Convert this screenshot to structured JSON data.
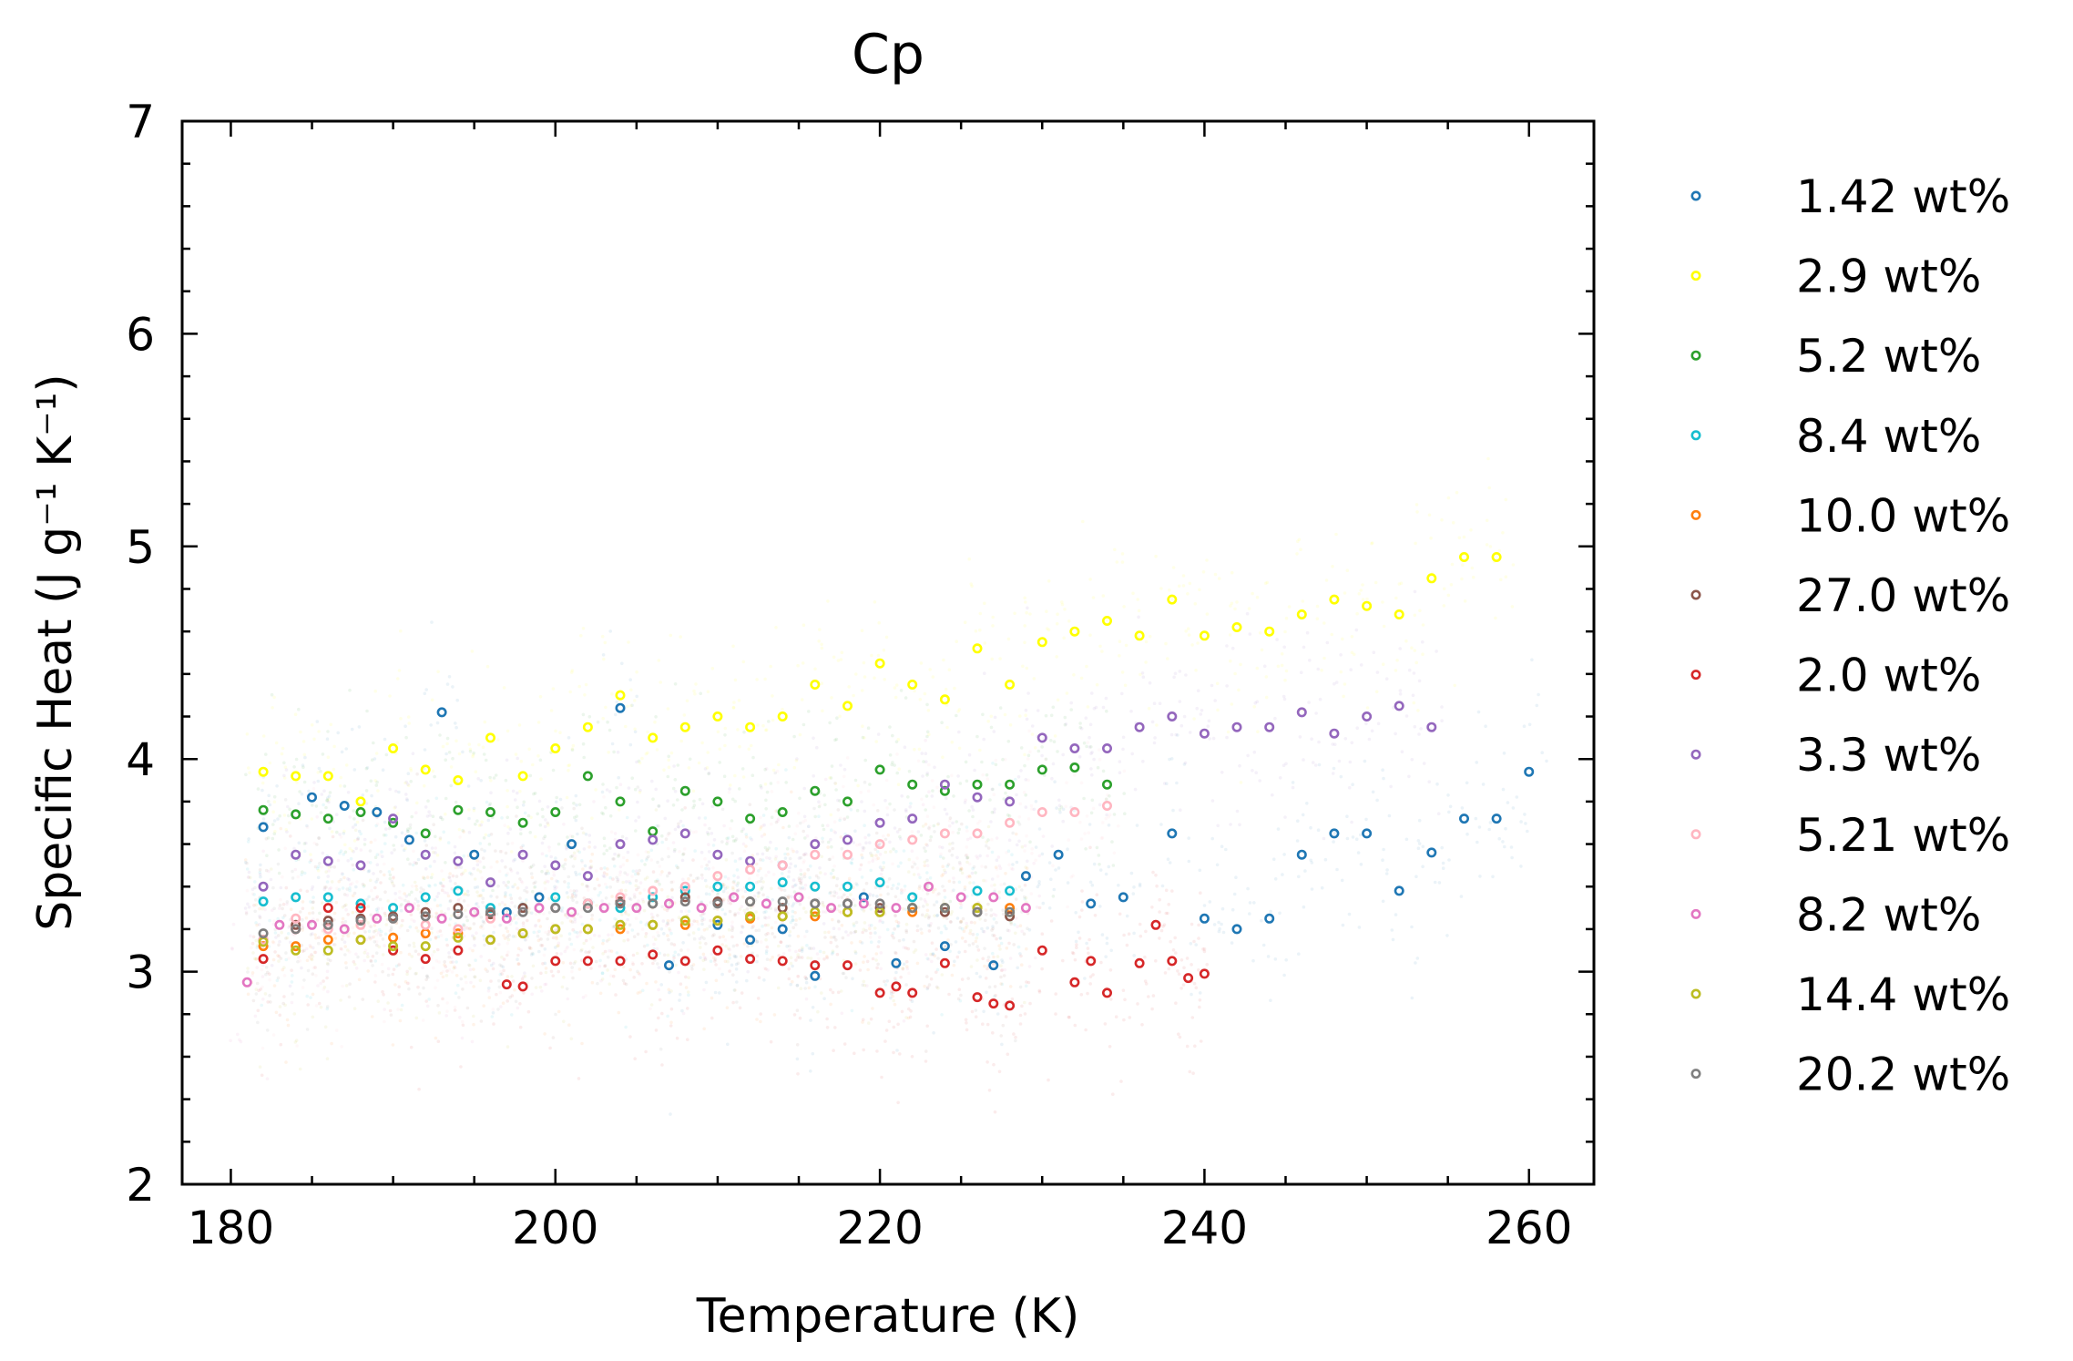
{
  "chart_data": {
    "type": "scatter",
    "title": "Cp",
    "xlabel": "Temperature (K)",
    "ylabel": "Specific Heat (J g⁻¹ K⁻¹)",
    "xlim": [
      177,
      264
    ],
    "ylim": [
      2,
      7
    ],
    "xticks": [
      180,
      200,
      220,
      240,
      260
    ],
    "yticks": [
      2,
      3,
      4,
      5,
      6,
      7
    ],
    "grid": false,
    "legend_position": "outside-right",
    "marker": "hollow-circle",
    "series": [
      {
        "name": "1.42 wt%",
        "color": "#1f77b4",
        "x": [
          182,
          185,
          187,
          189,
          191,
          193,
          195,
          197,
          199,
          201,
          204,
          207,
          210,
          212,
          214,
          216,
          219,
          221,
          224,
          227,
          229,
          231,
          233,
          235,
          238,
          240,
          242,
          244,
          246,
          248,
          250,
          252,
          254,
          256,
          258,
          260
        ],
        "y": [
          3.68,
          3.82,
          3.78,
          3.75,
          3.62,
          4.22,
          3.55,
          3.28,
          3.35,
          3.6,
          4.24,
          3.03,
          3.22,
          3.15,
          3.2,
          2.98,
          3.35,
          3.04,
          3.12,
          3.03,
          3.45,
          3.55,
          3.32,
          3.35,
          3.65,
          3.25,
          3.2,
          3.25,
          3.55,
          3.65,
          3.65,
          3.38,
          3.56,
          3.72,
          3.72,
          3.94
        ]
      },
      {
        "name": "2.9 wt%",
        "color": "#ffff00",
        "x": [
          182,
          184,
          186,
          188,
          190,
          192,
          194,
          196,
          198,
          200,
          202,
          204,
          206,
          208,
          210,
          212,
          214,
          216,
          218,
          220,
          222,
          224,
          226,
          228,
          230,
          232,
          234,
          236,
          238,
          240,
          242,
          244,
          246,
          248,
          250,
          252,
          254,
          256,
          258
        ],
        "y": [
          3.94,
          3.92,
          3.92,
          3.8,
          4.05,
          3.95,
          3.9,
          4.1,
          3.92,
          4.05,
          4.15,
          4.3,
          4.1,
          4.15,
          4.2,
          4.15,
          4.2,
          4.35,
          4.25,
          4.45,
          4.35,
          4.28,
          4.52,
          4.35,
          4.55,
          4.6,
          4.65,
          4.58,
          4.75,
          4.58,
          4.62,
          4.6,
          4.68,
          4.75,
          4.72,
          4.68,
          4.85,
          4.95,
          4.95
        ]
      },
      {
        "name": "5.2 wt%",
        "color": "#2ca02c",
        "x": [
          182,
          184,
          186,
          188,
          190,
          192,
          194,
          196,
          198,
          200,
          202,
          204,
          206,
          208,
          210,
          212,
          214,
          216,
          218,
          220,
          222,
          224,
          226,
          228,
          230,
          232,
          234
        ],
        "y": [
          3.76,
          3.74,
          3.72,
          3.75,
          3.7,
          3.65,
          3.76,
          3.75,
          3.7,
          3.75,
          3.92,
          3.8,
          3.66,
          3.85,
          3.8,
          3.72,
          3.75,
          3.85,
          3.8,
          3.95,
          3.88,
          3.85,
          3.88,
          3.88,
          3.95,
          3.96,
          3.88
        ]
      },
      {
        "name": "8.4 wt%",
        "color": "#17becf",
        "x": [
          182,
          184,
          186,
          188,
          190,
          192,
          194,
          196,
          198,
          200,
          202,
          204,
          206,
          208,
          210,
          212,
          214,
          216,
          218,
          220,
          222,
          224,
          226,
          228
        ],
        "y": [
          3.33,
          3.35,
          3.35,
          3.32,
          3.3,
          3.35,
          3.38,
          3.3,
          3.3,
          3.35,
          3.32,
          3.3,
          3.35,
          3.38,
          3.4,
          3.4,
          3.42,
          3.4,
          3.4,
          3.42,
          3.35,
          3.3,
          3.38,
          3.38
        ]
      },
      {
        "name": "10.0 wt%",
        "color": "#ff7f0e",
        "x": [
          182,
          184,
          186,
          188,
          190,
          192,
          194,
          196,
          198,
          200,
          202,
          204,
          206,
          208,
          210,
          212,
          214,
          216,
          218,
          220,
          222,
          224,
          226,
          228
        ],
        "y": [
          3.12,
          3.12,
          3.15,
          3.15,
          3.16,
          3.18,
          3.18,
          3.15,
          3.18,
          3.2,
          3.2,
          3.2,
          3.22,
          3.22,
          3.24,
          3.25,
          3.26,
          3.26,
          3.28,
          3.28,
          3.28,
          3.3,
          3.3,
          3.3
        ]
      },
      {
        "name": "27.0 wt%",
        "color": "#8c564b",
        "x": [
          182,
          184,
          186,
          188,
          190,
          192,
          194,
          196,
          198,
          200,
          202,
          204,
          206,
          208,
          210,
          212,
          214,
          216,
          218,
          220,
          222,
          224,
          226,
          228
        ],
        "y": [
          3.15,
          3.22,
          3.24,
          3.25,
          3.26,
          3.28,
          3.3,
          3.27,
          3.3,
          3.3,
          3.32,
          3.33,
          3.32,
          3.35,
          3.33,
          3.33,
          3.3,
          3.32,
          3.32,
          3.3,
          3.3,
          3.28,
          3.28,
          3.26
        ]
      },
      {
        "name": "2.0 wt%",
        "color": "#d62728",
        "x": [
          182,
          184,
          186,
          188,
          190,
          192,
          194,
          197,
          198,
          200,
          202,
          204,
          206,
          208,
          210,
          212,
          214,
          216,
          218,
          220,
          221,
          222,
          224,
          226,
          227,
          228,
          230,
          232,
          233,
          234,
          236,
          237,
          238,
          239,
          240
        ],
        "y": [
          3.06,
          3.2,
          3.3,
          3.3,
          3.1,
          3.06,
          3.1,
          2.94,
          2.93,
          3.05,
          3.05,
          3.05,
          3.08,
          3.05,
          3.1,
          3.06,
          3.05,
          3.03,
          3.03,
          2.9,
          2.93,
          2.9,
          3.04,
          2.88,
          2.85,
          2.84,
          3.1,
          2.95,
          3.05,
          2.9,
          3.04,
          3.22,
          3.05,
          2.97,
          2.99
        ]
      },
      {
        "name": "3.3 wt%",
        "color": "#9467bd",
        "x": [
          182,
          184,
          186,
          188,
          190,
          192,
          194,
          196,
          198,
          200,
          202,
          204,
          206,
          208,
          210,
          212,
          214,
          216,
          218,
          220,
          222,
          224,
          226,
          228,
          230,
          232,
          234,
          236,
          238,
          240,
          242,
          244,
          246,
          248,
          250,
          252,
          254
        ],
        "y": [
          3.4,
          3.55,
          3.52,
          3.5,
          3.72,
          3.55,
          3.52,
          3.42,
          3.55,
          3.5,
          3.45,
          3.6,
          3.62,
          3.65,
          3.55,
          3.52,
          3.5,
          3.6,
          3.62,
          3.7,
          3.72,
          3.88,
          3.82,
          3.8,
          4.1,
          4.05,
          4.05,
          4.15,
          4.2,
          4.12,
          4.15,
          4.15,
          4.22,
          4.12,
          4.2,
          4.25,
          4.15
        ]
      },
      {
        "name": "5.21 wt%",
        "color": "#ffb6c1",
        "x": [
          182,
          184,
          186,
          188,
          190,
          192,
          194,
          196,
          198,
          200,
          202,
          204,
          206,
          208,
          210,
          212,
          214,
          216,
          218,
          220,
          222,
          224,
          226,
          228,
          230,
          232,
          234
        ],
        "y": [
          3.15,
          3.25,
          3.2,
          3.22,
          3.25,
          3.22,
          3.2,
          3.25,
          3.28,
          3.3,
          3.32,
          3.35,
          3.38,
          3.4,
          3.45,
          3.48,
          3.5,
          3.55,
          3.55,
          3.6,
          3.62,
          3.65,
          3.65,
          3.7,
          3.75,
          3.75,
          3.78
        ]
      },
      {
        "name": "8.2 wt%",
        "color": "#e377c2",
        "x": [
          181,
          183,
          185,
          187,
          189,
          191,
          193,
          195,
          197,
          199,
          201,
          203,
          205,
          207,
          209,
          211,
          213,
          215,
          217,
          219,
          221,
          223,
          225,
          227,
          229
        ],
        "y": [
          2.95,
          3.22,
          3.22,
          3.2,
          3.25,
          3.3,
          3.25,
          3.28,
          3.25,
          3.3,
          3.28,
          3.3,
          3.3,
          3.32,
          3.3,
          3.35,
          3.32,
          3.35,
          3.3,
          3.32,
          3.3,
          3.4,
          3.35,
          3.35,
          3.3
        ]
      },
      {
        "name": "14.4 wt%",
        "color": "#bcbd22",
        "x": [
          182,
          184,
          186,
          188,
          190,
          192,
          194,
          196,
          198,
          200,
          202,
          204,
          206,
          208,
          210,
          212,
          214,
          216,
          218,
          220,
          222,
          224,
          226,
          228
        ],
        "y": [
          3.14,
          3.1,
          3.1,
          3.15,
          3.12,
          3.12,
          3.16,
          3.15,
          3.18,
          3.2,
          3.2,
          3.22,
          3.22,
          3.24,
          3.24,
          3.26,
          3.26,
          3.28,
          3.28,
          3.28,
          3.3,
          3.3,
          3.3,
          3.28
        ]
      },
      {
        "name": "20.2 wt%",
        "color": "#7f7f7f",
        "x": [
          182,
          184,
          186,
          188,
          190,
          192,
          194,
          196,
          198,
          200,
          202,
          204,
          206,
          208,
          210,
          212,
          214,
          216,
          218,
          220,
          222,
          224,
          226,
          228
        ],
        "y": [
          3.18,
          3.2,
          3.22,
          3.24,
          3.25,
          3.26,
          3.27,
          3.28,
          3.28,
          3.3,
          3.3,
          3.32,
          3.32,
          3.33,
          3.32,
          3.33,
          3.33,
          3.32,
          3.32,
          3.32,
          3.3,
          3.3,
          3.28,
          3.28
        ]
      }
    ]
  }
}
